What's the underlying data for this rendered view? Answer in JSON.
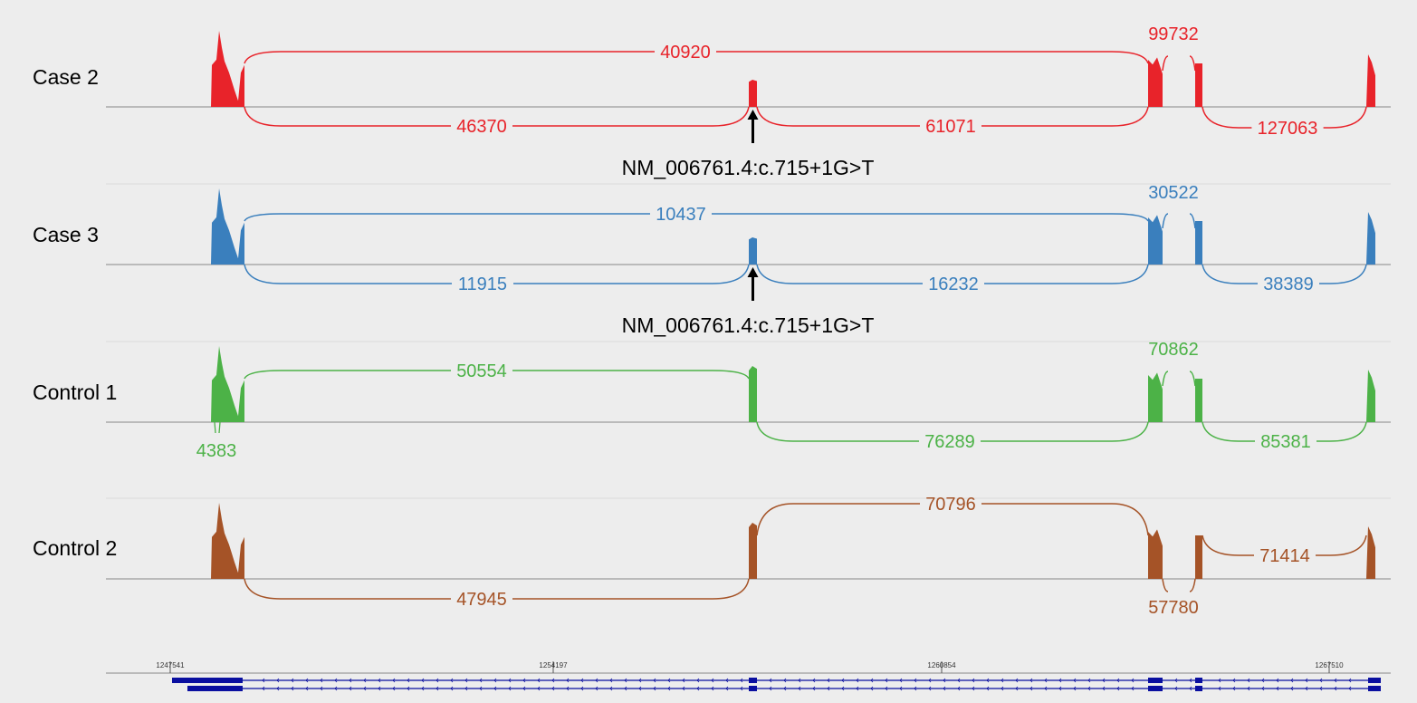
{
  "colors": {
    "background": "#ededed",
    "case2": "#e8232a",
    "case3": "#3a7fbd",
    "control1": "#4cb247",
    "control2": "#a55327",
    "gene": "#0a0fa0",
    "baseline": "#888888",
    "separator": "#dcdcdc",
    "arrow": "#000000"
  },
  "tracks": [
    {
      "label": "Case 2",
      "color_key": "case2",
      "junctions": [
        {
          "count": "40920",
          "from": "exon1",
          "to": "exon3",
          "side": "above"
        },
        {
          "count": "99732",
          "from": "exon3",
          "to": "exon4",
          "side": "above"
        },
        {
          "count": "46370",
          "from": "exon1",
          "to": "exon2",
          "side": "below"
        },
        {
          "count": "61071",
          "from": "exon2",
          "to": "exon3",
          "side": "below"
        },
        {
          "count": "127063",
          "from": "exon4",
          "to": "exon5",
          "side": "below"
        }
      ],
      "variant": {
        "text": "NM_006761.4:c.715+1G>T",
        "exon": "exon2"
      }
    },
    {
      "label": "Case 3",
      "color_key": "case3",
      "junctions": [
        {
          "count": "10437",
          "from": "exon1",
          "to": "exon3",
          "side": "above"
        },
        {
          "count": "30522",
          "from": "exon3",
          "to": "exon4",
          "side": "above"
        },
        {
          "count": "11915",
          "from": "exon1",
          "to": "exon2",
          "side": "below"
        },
        {
          "count": "16232",
          "from": "exon2",
          "to": "exon3",
          "side": "below"
        },
        {
          "count": "38389",
          "from": "exon4",
          "to": "exon5",
          "side": "below"
        }
      ],
      "variant": {
        "text": "NM_006761.4:c.715+1G>T",
        "exon": "exon2"
      }
    },
    {
      "label": "Control 1",
      "color_key": "control1",
      "junctions": [
        {
          "count": "50554",
          "from": "exon1",
          "to": "exon2",
          "side": "above"
        },
        {
          "count": "70862",
          "from": "exon3",
          "to": "exon4",
          "side": "above"
        },
        {
          "count": "76289",
          "from": "exon2",
          "to": "exon3",
          "side": "below"
        },
        {
          "count": "85381",
          "from": "exon4",
          "to": "exon5",
          "side": "below"
        },
        {
          "count": "4383",
          "from": "exon1",
          "to": "exon1",
          "side": "below"
        }
      ],
      "variant": null
    },
    {
      "label": "Control 2",
      "color_key": "control2",
      "junctions": [
        {
          "count": "70796",
          "from": "exon2",
          "to": "exon3",
          "side": "above"
        },
        {
          "count": "71414",
          "from": "exon4",
          "to": "exon5",
          "side": "above"
        },
        {
          "count": "47945",
          "from": "exon1",
          "to": "exon2",
          "side": "below"
        },
        {
          "count": "57780",
          "from": "exon3",
          "to": "exon4",
          "side": "below"
        }
      ],
      "variant": null
    }
  ],
  "ruler": {
    "ticks": [
      "1247541",
      "1254197",
      "1260854",
      "1267510"
    ]
  },
  "gene_model": {
    "strand": "minus",
    "transcripts": 2
  }
}
